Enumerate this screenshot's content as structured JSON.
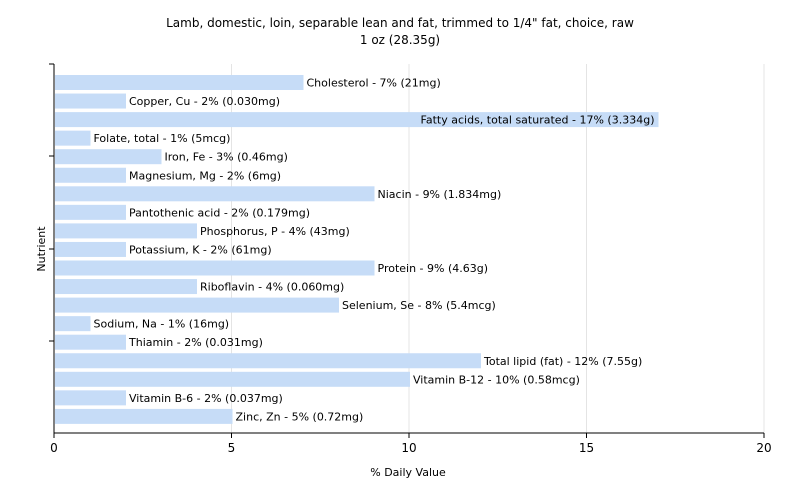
{
  "chart_data": {
    "type": "bar",
    "orientation": "horizontal",
    "title": "Lamb, domestic, loin, separable lean and fat, trimmed to 1/4\" fat, choice, raw",
    "subtitle": "1 oz (28.35g)",
    "xlabel": "% Daily Value",
    "ylabel": "Nutrient",
    "xlim": [
      0,
      20
    ],
    "xticks": [
      "0",
      "5",
      "10",
      "15",
      "20"
    ],
    "grid": true,
    "bar_color": "#c6dcf7",
    "grid_color": "#e4e4e4",
    "categories": [
      "Cholesterol",
      "Copper, Cu",
      "Fatty acids, total saturated",
      "Folate, total",
      "Iron, Fe",
      "Magnesium, Mg",
      "Niacin",
      "Pantothenic acid",
      "Phosphorus, P",
      "Potassium, K",
      "Protein",
      "Riboflavin",
      "Selenium, Se",
      "Sodium, Na",
      "Thiamin",
      "Total lipid (fat)",
      "Vitamin B-12",
      "Vitamin B-6",
      "Zinc, Zn"
    ],
    "values": [
      7,
      2,
      17,
      1,
      3,
      2,
      9,
      2,
      4,
      2,
      9,
      4,
      8,
      1,
      2,
      12,
      10,
      2,
      5
    ],
    "labels": [
      "Cholesterol - 7% (21mg)",
      "Copper, Cu - 2% (0.030mg)",
      "Fatty acids, total saturated - 17% (3.334g)",
      "Folate, total - 1% (5mcg)",
      "Iron, Fe - 3% (0.46mg)",
      "Magnesium, Mg - 2% (6mg)",
      "Niacin - 9% (1.834mg)",
      "Pantothenic acid - 2% (0.179mg)",
      "Phosphorus, P - 4% (43mg)",
      "Potassium, K - 2% (61mg)",
      "Protein - 9% (4.63g)",
      "Riboflavin - 4% (0.060mg)",
      "Selenium, Se - 8% (5.4mcg)",
      "Sodium, Na - 1% (16mg)",
      "Thiamin - 2% (0.031mg)",
      "Total lipid (fat) - 12% (7.55g)",
      "Vitamin B-12 - 10% (0.58mcg)",
      "Vitamin B-6 - 2% (0.037mg)",
      "Zinc, Zn - 5% (0.72mg)"
    ]
  }
}
